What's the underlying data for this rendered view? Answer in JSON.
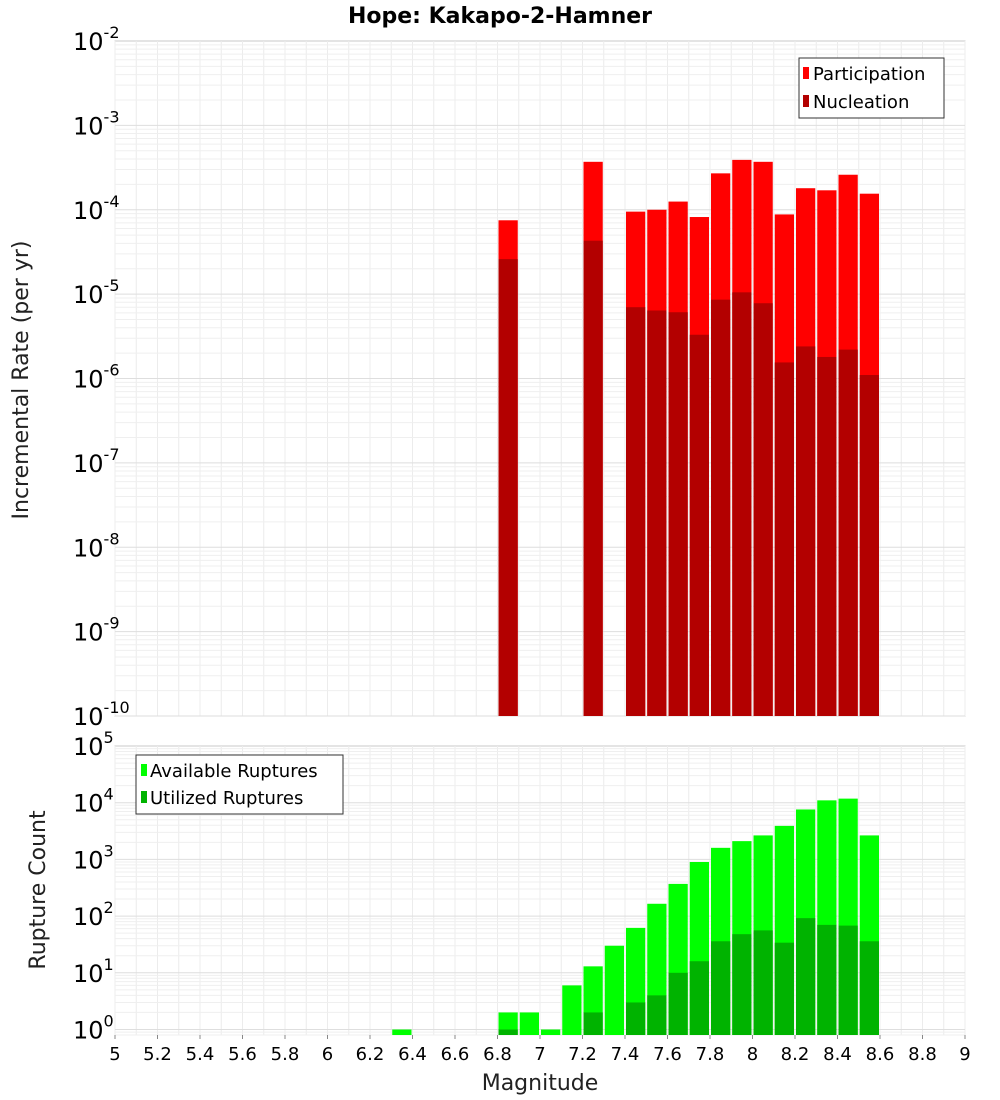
{
  "chart_data": [
    {
      "type": "bar",
      "title": "Hope: Kakapo-2-Hamner",
      "xlabel": "",
      "ylabel": "Incremental Rate (per yr)",
      "y_scale": "log",
      "ylim": [
        1e-10,
        0.01
      ],
      "xlim": [
        5,
        9
      ],
      "bin_width": 0.1,
      "legend_position": "top-right",
      "y_tick_exponents": [
        "-2",
        "-3",
        "-4",
        "-5",
        "-6",
        "-7",
        "-8",
        "-9",
        "-10"
      ],
      "series": [
        {
          "name": "Participation",
          "color": "#ff0000",
          "x": [
            6.85,
            7.25,
            7.45,
            7.55,
            7.65,
            7.75,
            7.85,
            7.95,
            8.05,
            8.15,
            8.25,
            8.35,
            8.45,
            8.55
          ],
          "values": [
            7.5e-05,
            0.00037,
            9.5e-05,
            0.0001,
            0.000125,
            8.2e-05,
            0.00027,
            0.00039,
            0.00037,
            8.8e-05,
            0.00018,
            0.00017,
            0.00026,
            0.000155
          ]
        },
        {
          "name": "Nucleation",
          "color": "#b30000",
          "x": [
            6.85,
            7.25,
            7.45,
            7.55,
            7.65,
            7.75,
            7.85,
            7.95,
            8.05,
            8.15,
            8.25,
            8.35,
            8.45,
            8.55
          ],
          "values": [
            2.6e-05,
            4.3e-05,
            7e-06,
            6.4e-06,
            6.1e-06,
            3.3e-06,
            8.6e-06,
            1.05e-05,
            7.8e-06,
            1.55e-06,
            2.4e-06,
            1.8e-06,
            2.2e-06,
            1.1e-06
          ]
        }
      ]
    },
    {
      "type": "bar",
      "title": "",
      "xlabel": "Magnitude",
      "ylabel": "Rupture Count",
      "y_scale": "log",
      "ylim": [
        0.8,
        100000
      ],
      "xlim": [
        5,
        9
      ],
      "bin_width": 0.1,
      "legend_position": "top-left",
      "x_ticks": [
        "5",
        "5.2",
        "5.4",
        "5.6",
        "5.8",
        "6",
        "6.2",
        "6.4",
        "6.6",
        "6.8",
        "7",
        "7.2",
        "7.4",
        "7.6",
        "7.8",
        "8",
        "8.2",
        "8.4",
        "8.6",
        "8.8",
        "9"
      ],
      "y_tick_exponents": [
        "5",
        "4",
        "3",
        "2",
        "1",
        "0"
      ],
      "series": [
        {
          "name": "Available Ruptures",
          "color": "#00ff00",
          "x": [
            6.35,
            6.85,
            6.95,
            7.05,
            7.15,
            7.25,
            7.35,
            7.45,
            7.55,
            7.65,
            7.75,
            7.85,
            7.95,
            8.05,
            8.15,
            8.25,
            8.35,
            8.45,
            8.55
          ],
          "values": [
            1,
            2,
            2,
            1,
            6,
            13,
            30,
            62,
            165,
            370,
            900,
            1600,
            2100,
            2650,
            3900,
            7600,
            11000,
            11800,
            2650
          ]
        },
        {
          "name": "Utilized Ruptures",
          "color": "#00b300",
          "x": [
            6.85,
            7.25,
            7.45,
            7.55,
            7.65,
            7.75,
            7.85,
            7.95,
            8.05,
            8.15,
            8.25,
            8.35,
            8.45,
            8.55
          ],
          "values": [
            1,
            2,
            3,
            4,
            10,
            16,
            36,
            48,
            56,
            34,
            92,
            70,
            68,
            36
          ]
        }
      ]
    }
  ]
}
